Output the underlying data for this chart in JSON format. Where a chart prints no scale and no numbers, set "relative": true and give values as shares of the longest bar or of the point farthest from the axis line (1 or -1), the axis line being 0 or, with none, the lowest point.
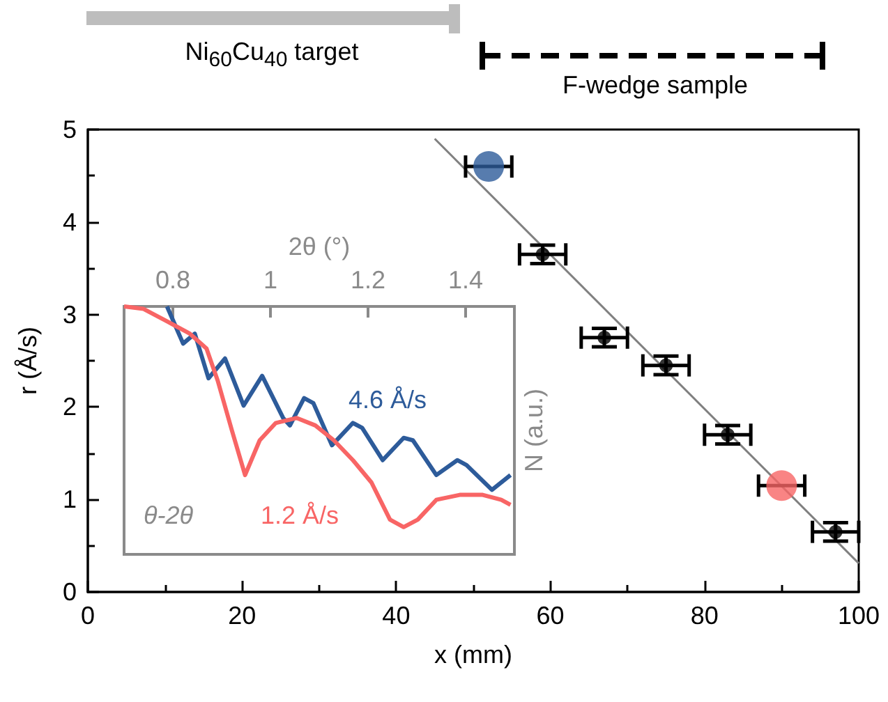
{
  "chart_data": [
    {
      "type": "scatter",
      "xlabel": "x (mm)",
      "ylabel": "r (Å/s)",
      "annotations": [
        "Ni$_{60}$Cu$_{40}$ target",
        "F-wedge sample"
      ],
      "xlim": [
        0,
        100
      ],
      "xticks": [
        0,
        20,
        40,
        60,
        80,
        100
      ],
      "ylim": [
        0,
        5
      ],
      "yticks": [
        0,
        1,
        2,
        3,
        4,
        5
      ],
      "grid": false,
      "marker": "circle",
      "series": [
        {
          "color": "#000000",
          "colors": [
            "#2d5b9a",
            "#000000",
            "#000000",
            "#000000",
            "#000000",
            "#f86565",
            "#000000"
          ],
          "x": [
            52,
            59,
            67,
            75,
            83,
            90,
            97
          ],
          "values": [
            4.6,
            3.65,
            2.75,
            2.45,
            1.7,
            1.15,
            0.65
          ],
          "sizes": [
            1,
            0.2,
            0.2,
            0.2,
            0.2,
            1,
            0.2
          ],
          "errors": [
            null,
            0.1,
            0.1,
            0.1,
            0.1,
            null,
            0.1
          ],
          "xerrors": [
            3,
            3,
            3,
            3,
            3,
            3,
            3
          ]
        },
        {
          "type": "line",
          "color": "#808080",
          "marker": "none",
          "x": [
            45,
            100
          ],
          "values": [
            4.9,
            0.31
          ]
        }
      ]
    },
    {
      "type": "line",
      "xlabel": "2θ (°)",
      "ylabel": "N (a.u.)",
      "relative": true,
      "annotations": [
        "θ-2θ"
      ],
      "xlim": [
        0.7,
        1.5
      ],
      "xticks": [
        0.8,
        1,
        1.2,
        1.4
      ],
      "grid": false,
      "marker": "none",
      "series": [
        {
          "name": "4.6 Å/s",
          "color": "#2d5b9a",
          "x": [
            0.788,
            0.821,
            0.845,
            0.873,
            0.907,
            0.945,
            0.983,
            1.026,
            1.04,
            1.069,
            1.088,
            1.126,
            1.169,
            1.188,
            1.23,
            1.273,
            1.292,
            1.34,
            1.383,
            1.402,
            1.454,
            1.492
          ],
          "values": [
            1.0,
            0.85,
            0.89,
            0.71,
            0.79,
            0.6,
            0.72,
            0.55,
            0.52,
            0.63,
            0.61,
            0.44,
            0.53,
            0.51,
            0.38,
            0.47,
            0.46,
            0.32,
            0.38,
            0.36,
            0.26,
            0.32
          ]
        },
        {
          "name": "1.2 Å/s",
          "color": "#f86565",
          "x": [
            0.7,
            0.74,
            0.788,
            0.835,
            0.869,
            0.892,
            0.921,
            0.948,
            0.978,
            1.011,
            1.054,
            1.092,
            1.13,
            1.169,
            1.207,
            1.245,
            1.273,
            1.302,
            1.34,
            1.388,
            1.435,
            1.473,
            1.492
          ],
          "values": [
            1.0,
            0.99,
            0.94,
            0.89,
            0.83,
            0.7,
            0.5,
            0.32,
            0.46,
            0.53,
            0.55,
            0.52,
            0.46,
            0.38,
            0.29,
            0.14,
            0.11,
            0.14,
            0.22,
            0.24,
            0.24,
            0.22,
            0.2
          ]
        }
      ]
    }
  ]
}
